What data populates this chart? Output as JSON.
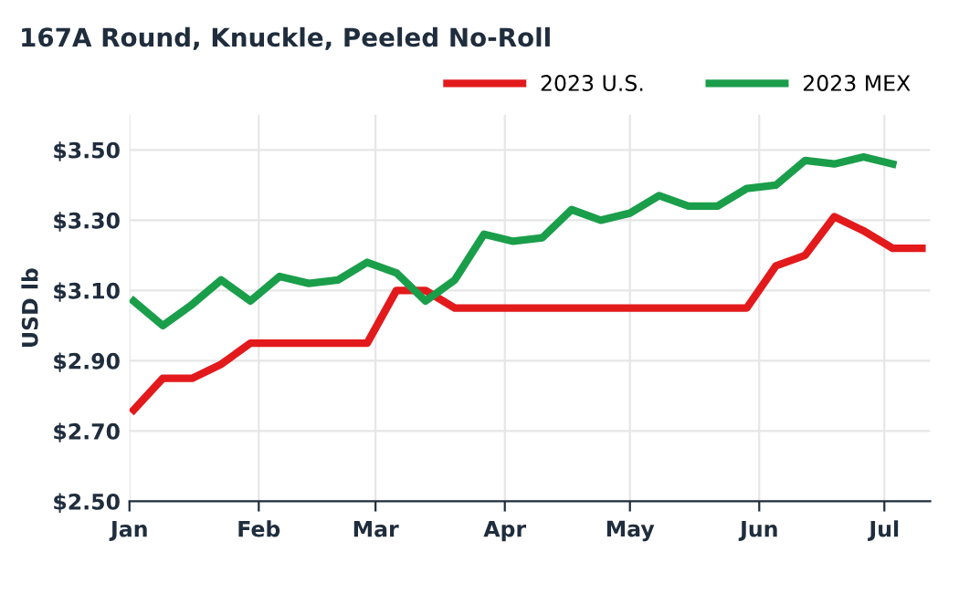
{
  "chart_data": {
    "type": "line",
    "title": "167A Round, Knuckle, Peeled No-Roll",
    "ylabel": "USD lb",
    "x": [
      "2023-01-02",
      "2023-01-09",
      "2023-01-16",
      "2023-01-23",
      "2023-01-30",
      "2023-02-06",
      "2023-02-13",
      "2023-02-20",
      "2023-02-27",
      "2023-03-06",
      "2023-03-13",
      "2023-03-20",
      "2023-03-27",
      "2023-04-03",
      "2023-04-10",
      "2023-04-17",
      "2023-04-24",
      "2023-05-01",
      "2023-05-08",
      "2023-05-15",
      "2023-05-22",
      "2023-05-29",
      "2023-06-05",
      "2023-06-12",
      "2023-06-19",
      "2023-06-26",
      "2023-07-03",
      "2023-07-10"
    ],
    "series": [
      {
        "name": "2023 U.S.",
        "color": "#e31a1c",
        "values": [
          2.76,
          2.85,
          2.85,
          2.89,
          2.95,
          2.95,
          2.95,
          2.95,
          2.95,
          3.1,
          3.1,
          3.05,
          3.05,
          3.05,
          3.05,
          3.05,
          3.05,
          3.05,
          3.05,
          3.05,
          3.05,
          3.05,
          3.17,
          3.2,
          3.31,
          3.27,
          3.22,
          3.22
        ]
      },
      {
        "name": "2023 MEX",
        "color": "#1a9e4a",
        "values": [
          3.07,
          3.0,
          3.06,
          3.13,
          3.07,
          3.14,
          3.12,
          3.13,
          3.18,
          3.15,
          3.07,
          3.13,
          3.26,
          3.24,
          3.25,
          3.33,
          3.3,
          3.32,
          3.37,
          3.34,
          3.34,
          3.39,
          3.4,
          3.47,
          3.46,
          3.48,
          3.46,
          null
        ]
      }
    ],
    "xlim": [
      "2023-01-01",
      "2023-07-12"
    ],
    "xticks": [
      {
        "value": "2023-01-01",
        "label": "Jan"
      },
      {
        "value": "2023-02-01",
        "label": "Feb"
      },
      {
        "value": "2023-03-01",
        "label": "Mar"
      },
      {
        "value": "2023-04-01",
        "label": "Apr"
      },
      {
        "value": "2023-05-01",
        "label": "May"
      },
      {
        "value": "2023-06-01",
        "label": "Jun"
      },
      {
        "value": "2023-07-01",
        "label": "Jul"
      }
    ],
    "ylim": [
      2.5,
      3.6
    ],
    "yticks": [
      {
        "value": 2.5,
        "label": "$2.50"
      },
      {
        "value": 2.7,
        "label": "$2.70"
      },
      {
        "value": 2.9,
        "label": "$2.90"
      },
      {
        "value": 3.1,
        "label": "$3.10"
      },
      {
        "value": 3.3,
        "label": "$3.30"
      },
      {
        "value": 3.5,
        "label": "$3.50"
      }
    ],
    "grid": true,
    "legend": "top right",
    "line_style": "solid",
    "marker": "none"
  }
}
